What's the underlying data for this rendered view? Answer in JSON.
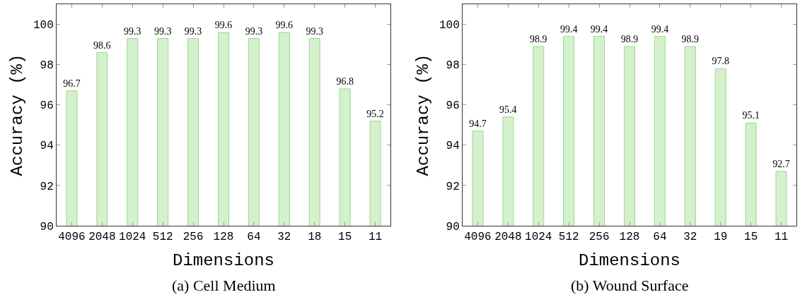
{
  "chart_data": [
    {
      "type": "bar",
      "xlabel": "Dimensions",
      "ylabel": "Accuracy (%)",
      "annotations": [
        "(a) Cell Medium"
      ],
      "categories": [
        "4096",
        "2048",
        "1024",
        "512",
        "256",
        "128",
        "64",
        "32",
        "18",
        "15",
        "11"
      ],
      "values": [
        96.7,
        98.6,
        99.3,
        99.3,
        99.3,
        99.6,
        99.3,
        99.6,
        99.3,
        96.8,
        95.2
      ],
      "color": "#d4f0cc",
      "ylim": [
        90,
        101
      ],
      "yticks": [
        90,
        92,
        94,
        96,
        98,
        100
      ],
      "grid": false,
      "data_labels": true
    },
    {
      "type": "bar",
      "xlabel": "Dimensions",
      "ylabel": "Accuracy (%)",
      "annotations": [
        "(b) Wound Surface"
      ],
      "categories": [
        "4096",
        "2048",
        "1024",
        "512",
        "256",
        "128",
        "64",
        "32",
        "19",
        "15",
        "11"
      ],
      "values": [
        94.7,
        95.4,
        98.9,
        99.4,
        99.4,
        98.9,
        99.4,
        98.9,
        97.8,
        95.1,
        92.7
      ],
      "color": "#d4f0cc",
      "ylim": [
        90,
        101
      ],
      "yticks": [
        90,
        92,
        94,
        96,
        98,
        100
      ],
      "grid": false,
      "data_labels": true
    }
  ]
}
